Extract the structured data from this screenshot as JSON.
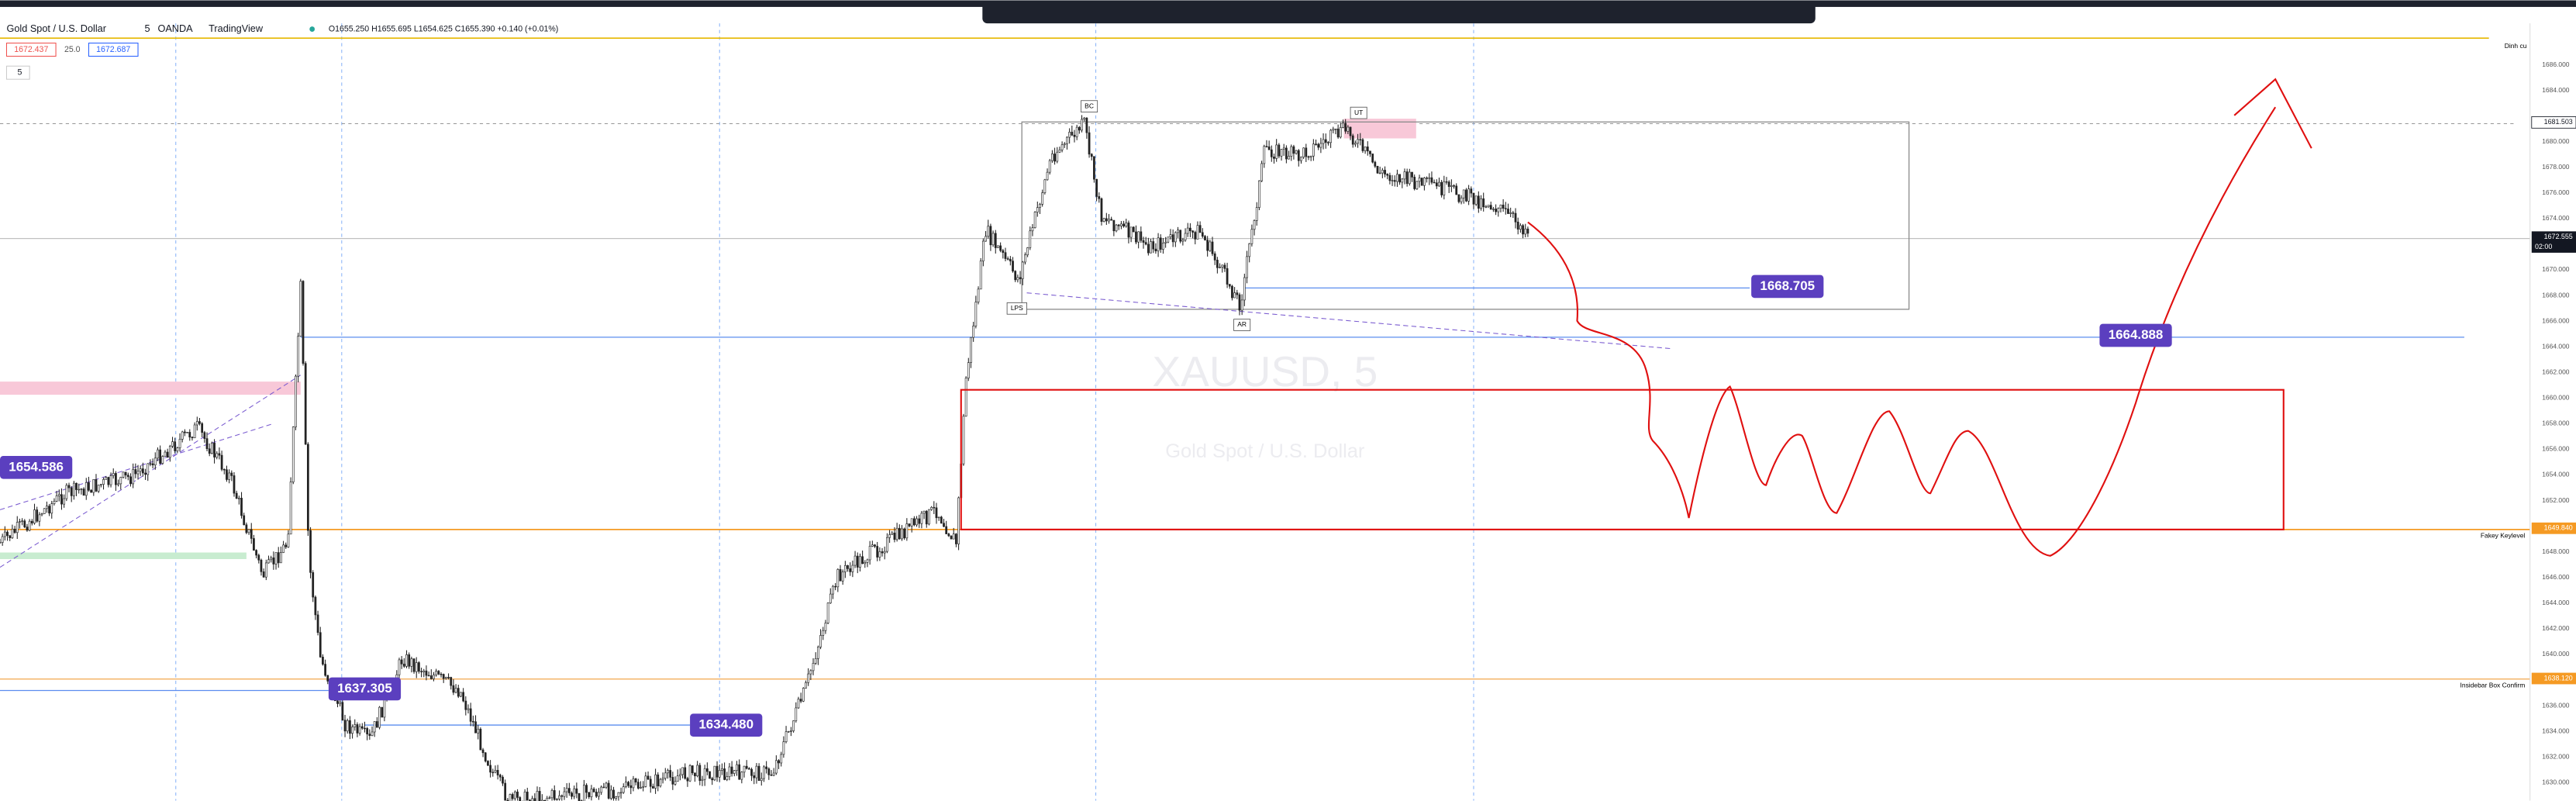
{
  "header": {
    "symbol": "Gold Spot / U.S. Dollar",
    "interval": "5",
    "exchange": "OANDA",
    "source": "TradingView",
    "ohlc": "O1655.250 H1655.695 L1654.625 C1655.390 +0.140 (+0.01%)",
    "bid": "1672.437",
    "spread": "25.0",
    "ask": "1672.687",
    "indicator_count": "5"
  },
  "watermark": {
    "ticker": "XAUUSD, 5",
    "name": "Gold Spot / U.S. Dollar"
  },
  "price_axis": {
    "ticks": [
      "1686.000",
      "1684.000",
      "1680.000",
      "1678.000",
      "1676.000",
      "1674.000",
      "1670.000",
      "1668.000",
      "1666.000",
      "1664.000",
      "1662.000",
      "1660.000",
      "1658.000",
      "1656.000",
      "1654.000",
      "1652.000",
      "1648.000",
      "1646.000",
      "1644.000",
      "1642.000",
      "1640.000",
      "1636.000",
      "1634.000",
      "1632.000",
      "1630.000"
    ],
    "marked": [
      {
        "price": "1681.503"
      },
      {
        "price": "1672.555",
        "time": "02:00"
      },
      {
        "price": "1649.840"
      },
      {
        "price": "1638.120"
      }
    ]
  },
  "price_labels": [
    "1668.705",
    "1664.888",
    "1654.586",
    "1637.305",
    "1634.480"
  ],
  "annotations": {
    "bc": "BC",
    "ut": "UT",
    "lps": "LPS",
    "ar": "AR"
  },
  "level_notes": {
    "top": "Dinh cu",
    "fakey": "Fakey Keylevel",
    "insidebar": "Insidebar Box Confirm"
  }
}
